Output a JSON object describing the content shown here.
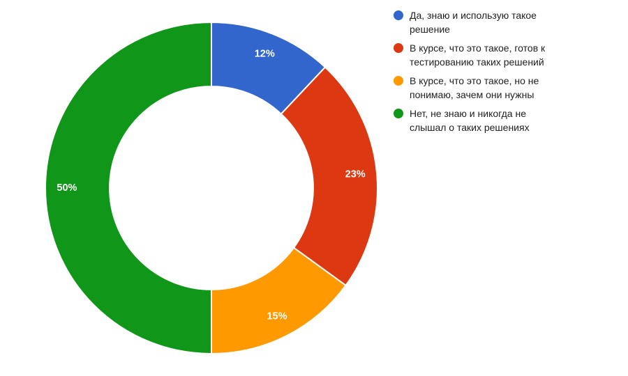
{
  "chart_data": {
    "type": "pie",
    "subtype": "donut",
    "title": "",
    "unit": "%",
    "legend_position": "right",
    "background": "#ffffff",
    "donut_hole_ratio": 0.613,
    "slice_border_color": "#ffffff",
    "slice_text_color": "#ffffff",
    "legend_text_color": "#212121",
    "start_angle_deg": 0,
    "direction": "clockwise",
    "slices": [
      {
        "label": "Да, знаю и использую такое решение",
        "legend_lines": [
          "Да, знаю и использую такое",
          "решение"
        ],
        "value": 12,
        "percent_label": "12%",
        "color": "#3366CC"
      },
      {
        "label": "В курсе, что это такое, готов к тестированию таких решений",
        "legend_lines": [
          "В курсе, что это такое, готов к",
          "тестированию таких решений"
        ],
        "value": 23,
        "percent_label": "23%",
        "color": "#DC3912"
      },
      {
        "label": "В курсе, что это такое, но не понимаю, зачем они нужны",
        "legend_lines": [
          "В курсе, что это такое, но не",
          "понимаю, зачем они нужны"
        ],
        "value": 15,
        "percent_label": "15%",
        "color": "#FF9900"
      },
      {
        "label": "Нет, не знаю и никогда не слышал о таких решениях",
        "legend_lines": [
          "Нет, не знаю и никогда не",
          "слышал о таких решениях"
        ],
        "value": 50,
        "percent_label": "50%",
        "color": "#109618"
      }
    ]
  }
}
